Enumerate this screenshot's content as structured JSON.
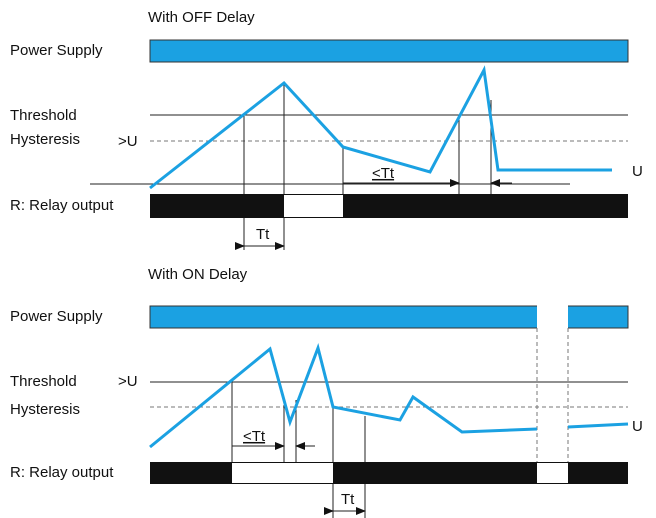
{
  "diagrams": [
    {
      "title": "With OFF Delay",
      "power_supply": "Power Supply",
      "threshold": "Threshold",
      "hysteresis": "Hysteresis",
      "level": ">U",
      "short_delay": "<Tt",
      "signal": "U",
      "relay": "R: Relay output",
      "delay": "Tt"
    },
    {
      "title": "With ON Delay",
      "power_supply": "Power Supply",
      "threshold": "Threshold",
      "hysteresis": "Hysteresis",
      "level": ">U",
      "short_delay": "<Tt",
      "signal": "U",
      "relay": "R: Relay output",
      "delay": "Tt"
    }
  ]
}
